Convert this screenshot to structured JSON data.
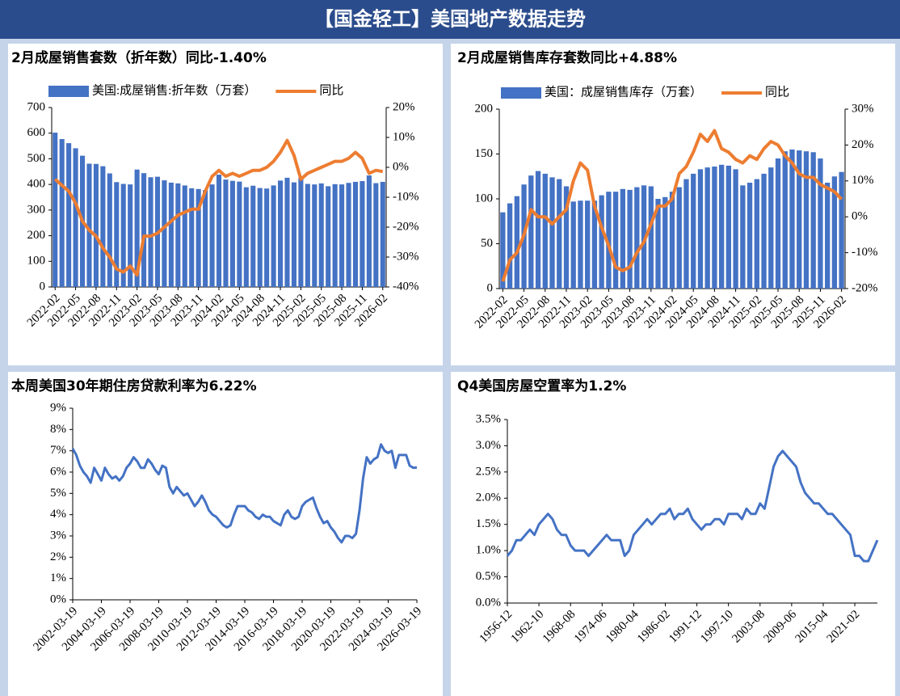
{
  "title": "【国金轻工】美国地产数据走势",
  "chart_data": [
    {
      "type": "bar_line",
      "title": "2月成屋销售套数（折年数）同比-1.40%",
      "categories": [
        "2022-02",
        null,
        null,
        "2022-05",
        null,
        null,
        "2022-08",
        null,
        null,
        "2022-11",
        null,
        null,
        "2023-02",
        null,
        null,
        "2023-05",
        null,
        null,
        "2023-08",
        null,
        null,
        "2023-11",
        null,
        null,
        "2024-02",
        null,
        null,
        "2024-05",
        null,
        null,
        "2024-08",
        null,
        null,
        "2024-11",
        null,
        null,
        "2025-02",
        null,
        null,
        "2025-05",
        null,
        null,
        "2025-08",
        null,
        null,
        "2025-11",
        null,
        null,
        "2026-02"
      ],
      "series": [
        {
          "name": "美国:成屋销售:折年数（万套）",
          "color": "#4472c4",
          "type": "bar",
          "values": [
            602,
            577,
            561,
            541,
            512,
            481,
            480,
            471,
            443,
            409,
            402,
            400,
            458,
            444,
            428,
            430,
            416,
            407,
            404,
            396,
            385,
            382,
            378,
            400,
            438,
            419,
            414,
            411,
            389,
            395,
            386,
            384,
            396,
            415,
            426,
            408,
            426,
            402,
            400,
            404,
            393,
            401,
            400,
            406,
            410,
            413,
            435,
            405,
            410
          ]
        },
        {
          "name": "同比",
          "color": "#ed7d31",
          "type": "line",
          "axis": "y2",
          "values": [
            -4,
            -6,
            -8,
            -12,
            -18,
            -21,
            -23,
            -27,
            -30,
            -34,
            -35,
            -33,
            -36,
            -23,
            -23,
            -22,
            -20,
            -18,
            -16,
            -15,
            -14,
            -14,
            -8,
            -3,
            -1,
            -3,
            -2,
            -3,
            -2,
            -1,
            -1,
            0,
            2,
            5,
            9,
            4,
            -4,
            -2,
            -1,
            0,
            1,
            2,
            2,
            3,
            5,
            3,
            -2,
            -1,
            -1.4
          ]
        }
      ],
      "ylim": [
        0,
        700
      ],
      "yticks": [
        0,
        100,
        200,
        300,
        400,
        500,
        600,
        700
      ],
      "y2lim": [
        -40,
        20
      ],
      "y2ticks": [
        {
          "value": -40,
          "label": "-40%"
        },
        {
          "value": -30,
          "label": "-30%"
        },
        {
          "value": -20,
          "label": "-20%"
        },
        {
          "value": -10,
          "label": "-10%"
        },
        {
          "value": 0,
          "label": "0%"
        },
        {
          "value": 10,
          "label": "10%"
        },
        {
          "value": 20,
          "label": "20%"
        }
      ]
    },
    {
      "type": "bar_line",
      "title": "2月成屋销售库存套数同比+4.88%",
      "categories": [
        "2022-02",
        null,
        null,
        "2022-05",
        null,
        null,
        "2022-08",
        null,
        null,
        "2022-11",
        null,
        null,
        "2023-02",
        null,
        null,
        "2023-05",
        null,
        null,
        "2023-08",
        null,
        null,
        "2023-11",
        null,
        null,
        "2024-02",
        null,
        null,
        "2024-05",
        null,
        null,
        "2024-08",
        null,
        null,
        "2024-11",
        null,
        null,
        "2025-02",
        null,
        null,
        "2025-05",
        null,
        null,
        "2025-08",
        null,
        null,
        "2025-11",
        null,
        null,
        "2026-02"
      ],
      "series": [
        {
          "name": "美国：成屋销售库存（万套）",
          "color": "#4472c4",
          "type": "bar",
          "values": [
            85,
            95,
            103,
            116,
            126,
            131,
            128,
            124,
            122,
            114,
            97,
            98,
            98,
            98,
            104,
            108,
            108,
            111,
            110,
            113,
            115,
            114,
            100,
            102,
            108,
            113,
            122,
            128,
            133,
            135,
            136,
            138,
            137,
            133,
            115,
            118,
            122,
            128,
            135,
            145,
            153,
            155,
            154,
            153,
            152,
            145,
            118,
            125,
            130
          ]
        },
        {
          "name": "同比",
          "color": "#ed7d31",
          "type": "line",
          "axis": "y2",
          "values": [
            -18,
            -12,
            -10,
            -5,
            2,
            0,
            0,
            -2,
            0,
            2,
            10,
            15,
            13,
            3,
            -3,
            -8,
            -14,
            -15,
            -14,
            -10,
            -7,
            -2,
            3,
            3,
            5,
            12,
            14,
            18,
            23,
            21,
            24,
            19,
            18,
            16,
            15,
            17,
            16,
            19,
            21,
            20,
            17,
            15,
            12,
            11,
            11,
            9,
            8,
            7,
            4.88
          ]
        }
      ],
      "ylim": [
        0,
        200
      ],
      "yticks": [
        0,
        50,
        100,
        150,
        200
      ],
      "y2lim": [
        -20,
        30
      ],
      "y2ticks": [
        {
          "value": -20,
          "label": "-20%"
        },
        {
          "value": -10,
          "label": "-10%"
        },
        {
          "value": 0,
          "label": "0%"
        },
        {
          "value": 10,
          "label": "10%"
        },
        {
          "value": 20,
          "label": "20%"
        },
        {
          "value": 30,
          "label": "30%"
        }
      ]
    },
    {
      "type": "line",
      "title": "本周美国30年期住房贷款利率为6.22%",
      "categories": [
        "2002-03-19",
        null,
        null,
        null,
        null,
        null,
        null,
        null,
        "2004-03-19",
        null,
        null,
        null,
        null,
        null,
        null,
        null,
        "2006-03-19",
        null,
        null,
        null,
        null,
        null,
        null,
        null,
        "2008-03-19",
        null,
        null,
        null,
        null,
        null,
        null,
        null,
        "2010-03-19",
        null,
        null,
        null,
        null,
        null,
        null,
        null,
        "2012-03-19",
        null,
        null,
        null,
        null,
        null,
        null,
        null,
        "2014-03-19",
        null,
        null,
        null,
        null,
        null,
        null,
        null,
        "2016-03-19",
        null,
        null,
        null,
        null,
        null,
        null,
        null,
        "2018-03-19",
        null,
        null,
        null,
        null,
        null,
        null,
        null,
        "2020-03-19",
        null,
        null,
        null,
        null,
        null,
        null,
        null,
        "2022-03-19",
        null,
        null,
        null,
        null,
        null,
        null,
        null,
        "2024-03-19",
        null,
        null,
        null,
        null,
        null,
        null,
        null,
        "2026-03-19"
      ],
      "series": [
        {
          "color": "#4472c4",
          "values": [
            7.1,
            6.8,
            6.3,
            6.0,
            5.8,
            5.5,
            6.2,
            5.9,
            5.6,
            6.2,
            5.9,
            5.7,
            5.8,
            5.6,
            5.8,
            6.2,
            6.4,
            6.7,
            6.5,
            6.2,
            6.2,
            6.6,
            6.4,
            6.1,
            5.9,
            6.3,
            6.2,
            5.3,
            5.0,
            5.3,
            5.1,
            4.9,
            5.0,
            4.7,
            4.4,
            4.6,
            4.9,
            4.6,
            4.2,
            4.0,
            3.9,
            3.7,
            3.5,
            3.4,
            3.5,
            4.0,
            4.4,
            4.4,
            4.4,
            4.2,
            4.1,
            3.9,
            3.8,
            4.0,
            3.9,
            3.9,
            3.7,
            3.6,
            3.5,
            4.0,
            4.2,
            3.9,
            3.8,
            3.9,
            4.4,
            4.6,
            4.7,
            4.8,
            4.3,
            3.9,
            3.6,
            3.7,
            3.4,
            3.2,
            2.9,
            2.7,
            3.0,
            3.0,
            2.9,
            3.1,
            4.2,
            5.7,
            6.7,
            6.4,
            6.6,
            6.7,
            7.3,
            7.0,
            6.9,
            7.0,
            6.2,
            6.8,
            6.8,
            6.8,
            6.3,
            6.2,
            6.22
          ]
        }
      ],
      "ylim": [
        0,
        9
      ],
      "yticks": [
        {
          "value": 0,
          "label": "0%"
        },
        {
          "value": 1,
          "label": "1%"
        },
        {
          "value": 2,
          "label": "2%"
        },
        {
          "value": 3,
          "label": "3%"
        },
        {
          "value": 4,
          "label": "4%"
        },
        {
          "value": 5,
          "label": "5%"
        },
        {
          "value": 6,
          "label": "6%"
        },
        {
          "value": 7,
          "label": "7%"
        },
        {
          "value": 8,
          "label": "8%"
        },
        {
          "value": 9,
          "label": "9%"
        }
      ]
    },
    {
      "type": "line",
      "title": "Q4美国房屋空置率为1.2%",
      "categories": [
        "1956-12",
        null,
        null,
        null,
        null,
        null,
        null,
        "1962-10",
        null,
        null,
        null,
        null,
        null,
        null,
        "1968-08",
        null,
        null,
        null,
        null,
        null,
        null,
        "1974-06",
        null,
        null,
        null,
        null,
        null,
        null,
        "1980-04",
        null,
        null,
        null,
        null,
        null,
        null,
        "1986-02",
        null,
        null,
        null,
        null,
        null,
        null,
        "1991-12",
        null,
        null,
        null,
        null,
        null,
        null,
        "1997-10",
        null,
        null,
        null,
        null,
        null,
        null,
        "2003-08",
        null,
        null,
        null,
        null,
        null,
        null,
        "2009-06",
        null,
        null,
        null,
        null,
        null,
        null,
        "2015-04",
        null,
        null,
        null,
        null,
        null,
        null,
        "2021-02",
        null,
        null,
        null,
        null,
        null
      ],
      "series": [
        {
          "color": "#4472c4",
          "values": [
            0.9,
            1.0,
            1.2,
            1.2,
            1.3,
            1.4,
            1.3,
            1.5,
            1.6,
            1.7,
            1.6,
            1.4,
            1.3,
            1.3,
            1.1,
            1.0,
            1.0,
            1.0,
            0.9,
            1.0,
            1.1,
            1.2,
            1.3,
            1.2,
            1.2,
            1.2,
            0.9,
            1.0,
            1.3,
            1.4,
            1.5,
            1.6,
            1.5,
            1.6,
            1.7,
            1.7,
            1.8,
            1.6,
            1.7,
            1.7,
            1.8,
            1.6,
            1.5,
            1.4,
            1.5,
            1.5,
            1.6,
            1.6,
            1.5,
            1.7,
            1.7,
            1.7,
            1.6,
            1.8,
            1.7,
            1.7,
            1.9,
            1.8,
            2.2,
            2.6,
            2.8,
            2.9,
            2.8,
            2.7,
            2.6,
            2.3,
            2.1,
            2.0,
            1.9,
            1.9,
            1.8,
            1.7,
            1.7,
            1.6,
            1.5,
            1.4,
            1.3,
            0.9,
            0.9,
            0.8,
            0.8,
            1.0,
            1.2
          ]
        }
      ],
      "ylim": [
        0,
        3.5
      ],
      "yticks": [
        {
          "value": 0,
          "label": "0.0%"
        },
        {
          "value": 0.5,
          "label": "0.5%"
        },
        {
          "value": 1,
          "label": "1.0%"
        },
        {
          "value": 1.5,
          "label": "1.5%"
        },
        {
          "value": 2,
          "label": "2.0%"
        },
        {
          "value": 2.5,
          "label": "2.5%"
        },
        {
          "value": 3,
          "label": "3.0%"
        },
        {
          "value": 3.5,
          "label": "3.5%"
        }
      ]
    }
  ]
}
